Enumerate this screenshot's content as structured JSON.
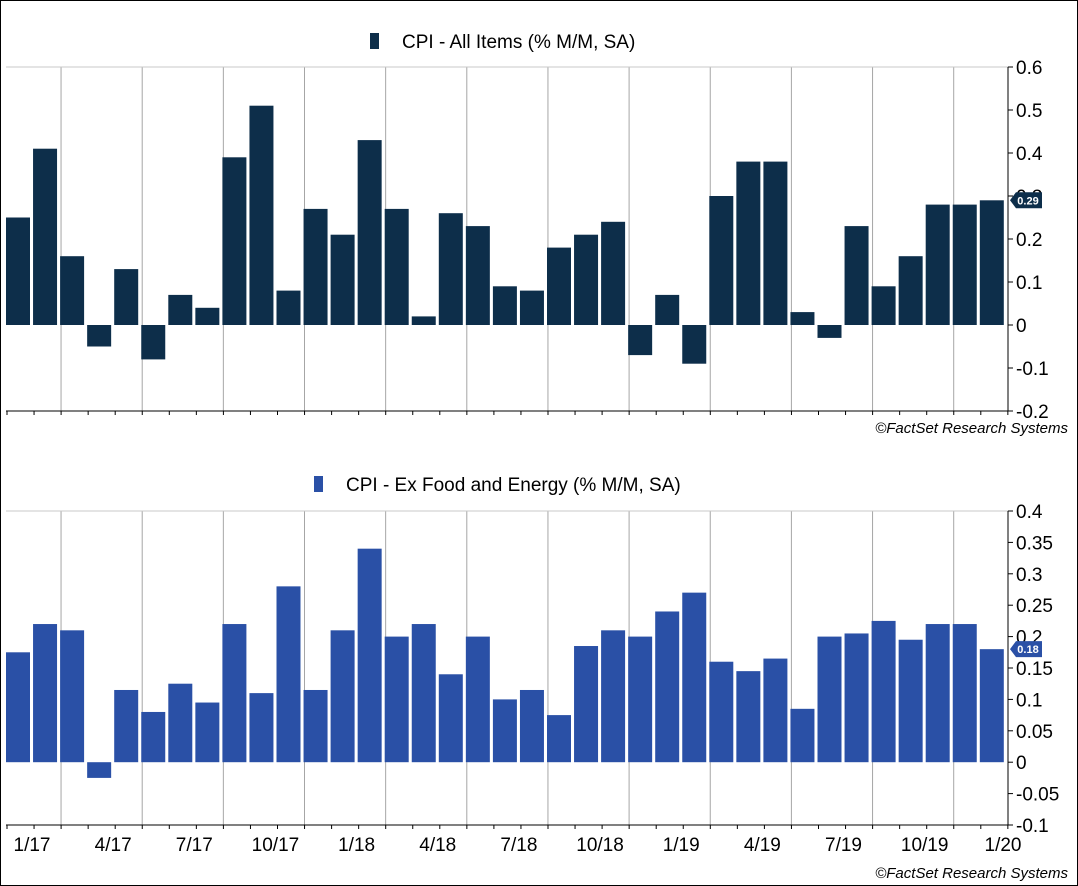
{
  "chart_data": [
    {
      "type": "bar",
      "title": "CPI - All Items (% M/M, SA)",
      "ylim": [
        -0.2,
        0.6
      ],
      "yticks": [
        "0.6",
        "0.5",
        "0.4",
        "0.3",
        "0.2",
        "0.1",
        "0",
        "-0.1",
        "-0.2"
      ],
      "last_value_label": "0.29",
      "color": "#0d2e4a",
      "source": "©FactSet Research Systems",
      "values": [
        0.25,
        0.41,
        0.16,
        -0.05,
        0.13,
        -0.08,
        0.07,
        0.04,
        0.39,
        0.51,
        0.08,
        0.27,
        0.21,
        0.43,
        0.27,
        0.02,
        0.26,
        0.23,
        0.09,
        0.08,
        0.18,
        0.21,
        0.24,
        -0.07,
        0.07,
        -0.09,
        0.3,
        0.38,
        0.38,
        0.03,
        -0.03,
        0.23,
        0.09,
        0.16,
        0.28,
        0.28,
        0.29
      ]
    },
    {
      "type": "bar",
      "title": "CPI - Ex Food and Energy (% M/M, SA)",
      "ylim": [
        -0.1,
        0.4
      ],
      "yticks": [
        "0.4",
        "0.35",
        "0.3",
        "0.25",
        "0.2",
        "0.15",
        "0.1",
        "0.05",
        "0",
        "-0.05",
        "-0.1"
      ],
      "last_value_label": "0.18",
      "color": "#2a50a6",
      "source": "©FactSet Research Systems",
      "values": [
        0.175,
        0.22,
        0.21,
        -0.025,
        0.115,
        0.08,
        0.125,
        0.095,
        0.22,
        0.11,
        0.28,
        0.115,
        0.21,
        0.34,
        0.2,
        0.22,
        0.14,
        0.2,
        0.1,
        0.115,
        0.075,
        0.185,
        0.21,
        0.2,
        0.24,
        0.27,
        0.16,
        0.145,
        0.165,
        0.085,
        0.2,
        0.205,
        0.225,
        0.195,
        0.22,
        0.22,
        0.18
      ]
    }
  ],
  "x_axis": {
    "tick_labels": [
      "1/17",
      "4/17",
      "7/17",
      "10/17",
      "1/18",
      "4/18",
      "7/18",
      "10/18",
      "1/19",
      "4/19",
      "7/19",
      "10/19",
      "1/20"
    ]
  }
}
